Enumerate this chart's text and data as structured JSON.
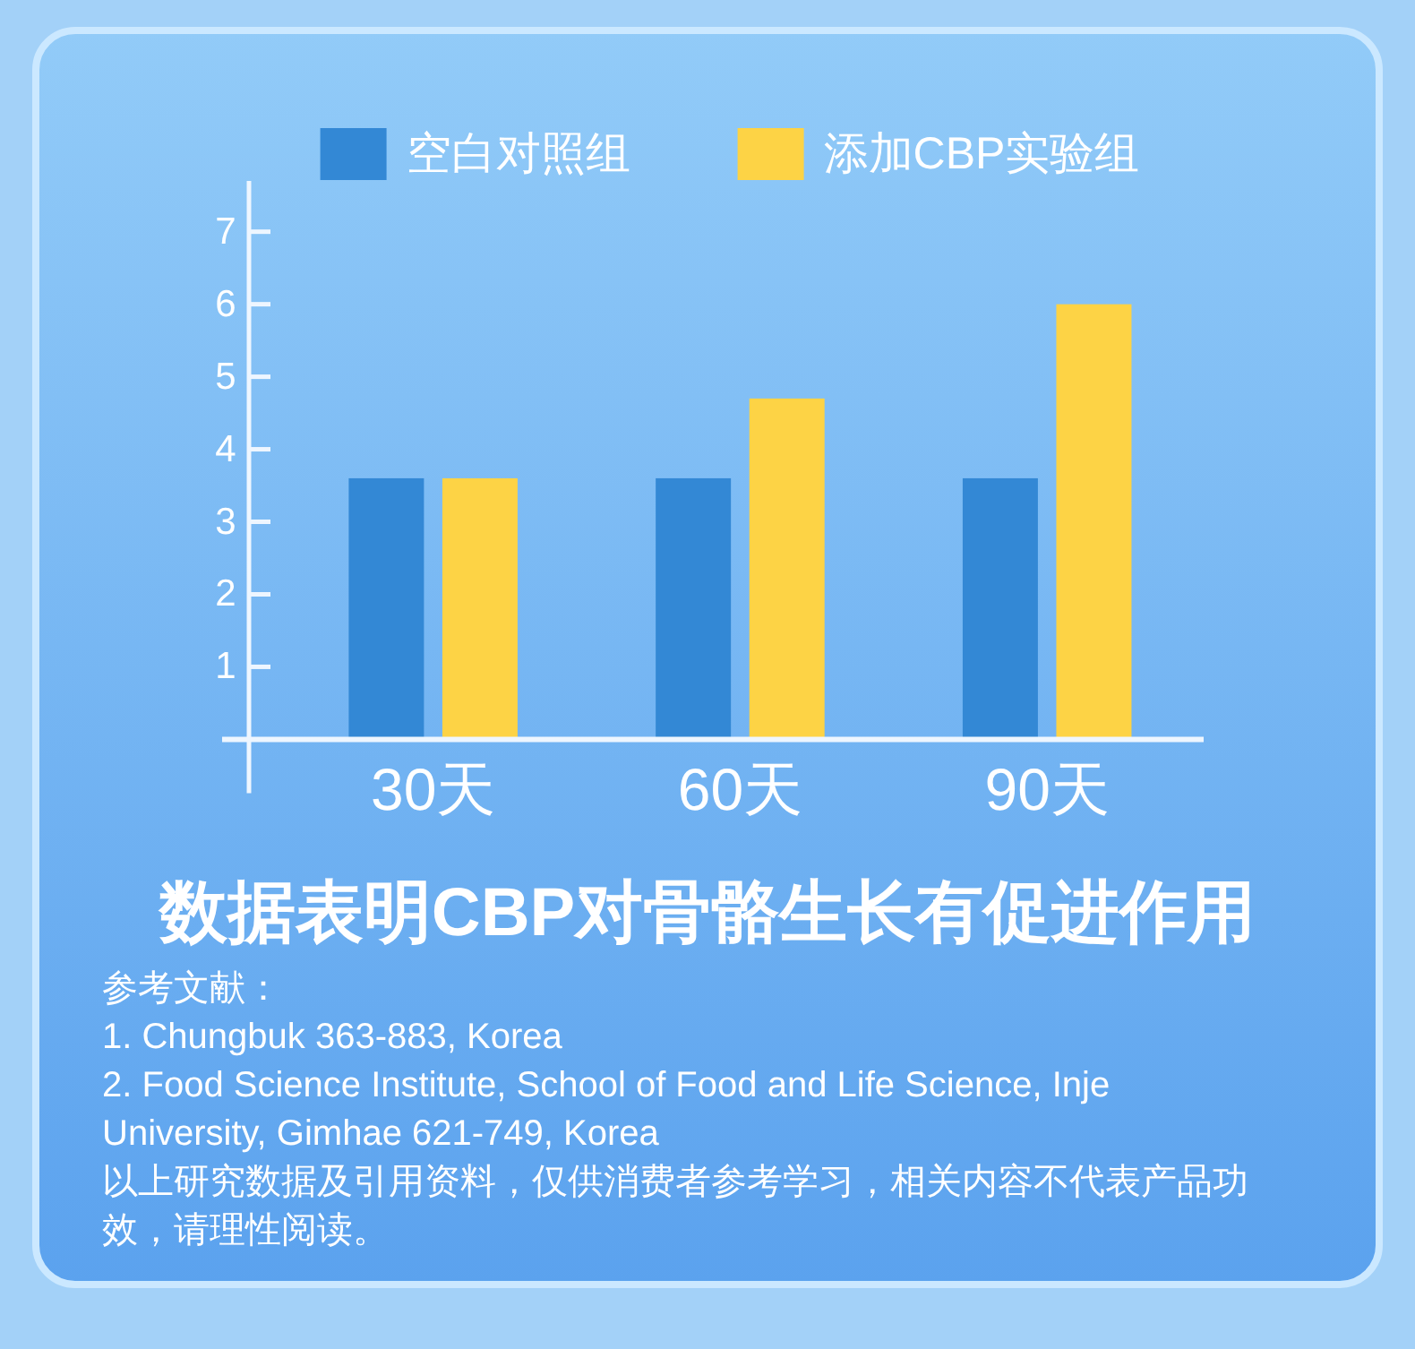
{
  "chart_data": {
    "type": "bar",
    "title": "数据表明CBP对骨骼生长有促进作用",
    "categories": [
      "30天",
      "60天",
      "90天"
    ],
    "series": [
      {
        "name": "空白对照组",
        "color": "#3388d5",
        "values": [
          3.6,
          3.6,
          3.6
        ]
      },
      {
        "name": "添加CBP实验组",
        "color": "#fdd345",
        "values": [
          3.6,
          4.7,
          6
        ]
      }
    ],
    "ylim": [
      0,
      7.7
    ],
    "yticks": [
      1,
      2,
      3,
      4,
      5,
      6,
      7
    ],
    "legend": "top",
    "annotations": [
      "参考文献：",
      "1. Chungbuk 363-883, Korea",
      "2. Food Science Institute, School of Food and Life Science, Inje University, Gimhae 621-749, Korea",
      "以上研究数据及引用资料，仅供消费者参考学习，相关内容不代表产品功效，请理性阅读。"
    ]
  }
}
